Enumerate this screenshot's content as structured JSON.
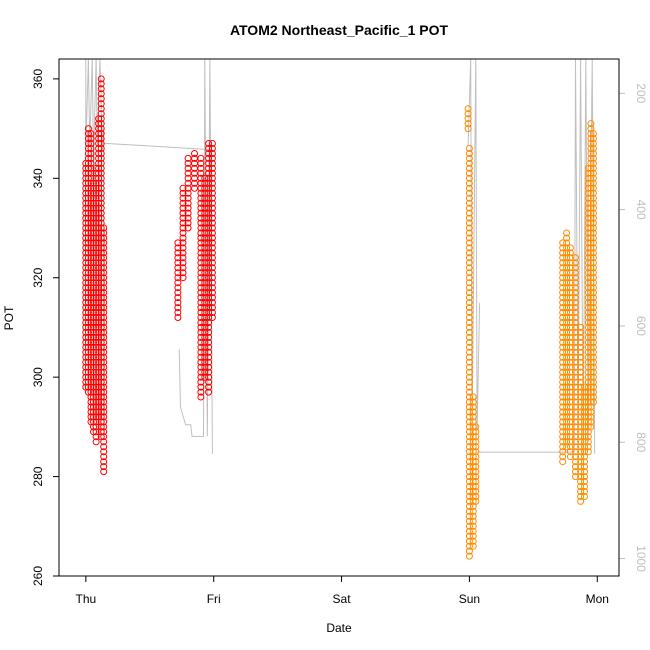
{
  "chart_data": {
    "type": "scatter",
    "title": "ATOM2 Northeast_Pacific_1 POT",
    "xlabel": "Date",
    "ylabel": "POT",
    "x_ticks": [
      "Thu",
      "Fri",
      "Sat",
      "Sun",
      "Mon"
    ],
    "x_tick_days": [
      0,
      1,
      2,
      3,
      4
    ],
    "xlim_days": [
      -0.21,
      4.17
    ],
    "ylim": [
      260,
      364
    ],
    "y_ticks": [
      260,
      280,
      300,
      320,
      340,
      360
    ],
    "right_axis": {
      "quantity": "pressure",
      "ticks": [
        200,
        400,
        600,
        800,
        1000
      ],
      "reversed": true,
      "lim": [
        141,
        1030
      ],
      "color": "#bfbfbf"
    },
    "series": [
      {
        "color": "#ff0000",
        "profiles": [
          {
            "x": 0.0,
            "y": [
              298,
              305,
              313,
              320,
              327,
              333,
              339,
              343
            ]
          },
          {
            "x": 0.02,
            "y": [
              297,
              302,
              309,
              317,
              324,
              331,
              337,
              343,
              348,
              350
            ]
          },
          {
            "x": 0.04,
            "y": [
              291,
              295,
              300,
              307,
              315,
              323,
              330,
              337,
              344,
              349
            ]
          },
          {
            "x": 0.06,
            "y": [
              289,
              293,
              297,
              303,
              311,
              319,
              327,
              334,
              339
            ]
          },
          {
            "x": 0.08,
            "y": [
              287,
              292,
              299,
              306,
              314,
              322,
              330,
              337,
              342
            ]
          },
          {
            "x": 0.1,
            "y": [
              292,
              298,
              304,
              311,
              318,
              325,
              332,
              339,
              345,
              352
            ]
          },
          {
            "x": 0.12,
            "y": [
              288,
              294,
              301,
              309,
              317,
              325,
              333,
              341,
              349,
              356,
              360
            ]
          },
          {
            "x": 0.14,
            "y": [
              281,
              284,
              287,
              292,
              298,
              306,
              314,
              322,
              330
            ]
          },
          {
            "x": 0.72,
            "y": [
              312,
              315,
              318,
              321,
              324,
              327
            ]
          },
          {
            "x": 0.76,
            "y": [
              320,
              324,
              328,
              332,
              335,
              338
            ]
          },
          {
            "x": 0.8,
            "y": [
              330,
              334,
              337,
              340,
              343,
              344
            ]
          },
          {
            "x": 0.85,
            "y": [
              338,
              340,
              342,
              344,
              345,
              344
            ]
          },
          {
            "x": 0.9,
            "y": [
              296,
              302,
              310,
              318,
              326,
              334,
              340,
              344
            ]
          },
          {
            "x": 0.93,
            "y": [
              300,
              306,
              313,
              320,
              327,
              334,
              340
            ]
          },
          {
            "x": 0.96,
            "y": [
              297,
              304,
              312,
              320,
              328,
              336,
              343,
              347
            ]
          },
          {
            "x": 0.99,
            "y": [
              312,
              318,
              325,
              332,
              339,
              345,
              347
            ]
          }
        ]
      },
      {
        "color": "#ff8c00",
        "profiles": [
          {
            "x": 2.99,
            "y": [
              350,
              351,
              352,
              353,
              354
            ]
          },
          {
            "x": 3.0,
            "y": [
              264,
              270,
              276,
              282,
              288,
              295,
              302,
              310,
              318,
              326,
              334,
              341,
              346
            ]
          },
          {
            "x": 3.03,
            "y": [
              266,
              272,
              278,
              284,
              290,
              296
            ]
          },
          {
            "x": 3.05,
            "y": [
              275,
              280,
              285,
              290
            ]
          },
          {
            "x": 3.73,
            "y": [
              283,
              290,
              298,
              306,
              314,
              322,
              327
            ]
          },
          {
            "x": 3.76,
            "y": [
              286,
              294,
              302,
              310,
              318,
              326,
              329
            ]
          },
          {
            "x": 3.79,
            "y": [
              284,
              291,
              299,
              307,
              315,
              322,
              326
            ]
          },
          {
            "x": 3.83,
            "y": [
              280,
              287,
              295,
              303,
              311,
              318,
              324
            ]
          },
          {
            "x": 3.87,
            "y": [
              275,
              279,
              283,
              287,
              291,
              295,
              302,
              310
            ]
          },
          {
            "x": 3.9,
            "y": [
              276,
              280,
              284,
              289,
              293,
              298
            ]
          },
          {
            "x": 3.93,
            "y": [
              285,
              292,
              300,
              308,
              316,
              324,
              332,
              338,
              342
            ]
          },
          {
            "x": 3.95,
            "y": [
              290,
              298,
              306,
              315,
              324,
              333,
              341,
              347,
              351
            ]
          },
          {
            "x": 3.97,
            "y": [
              295,
              303,
              311,
              320,
              329,
              337,
              344,
              349
            ]
          }
        ]
      }
    ]
  }
}
